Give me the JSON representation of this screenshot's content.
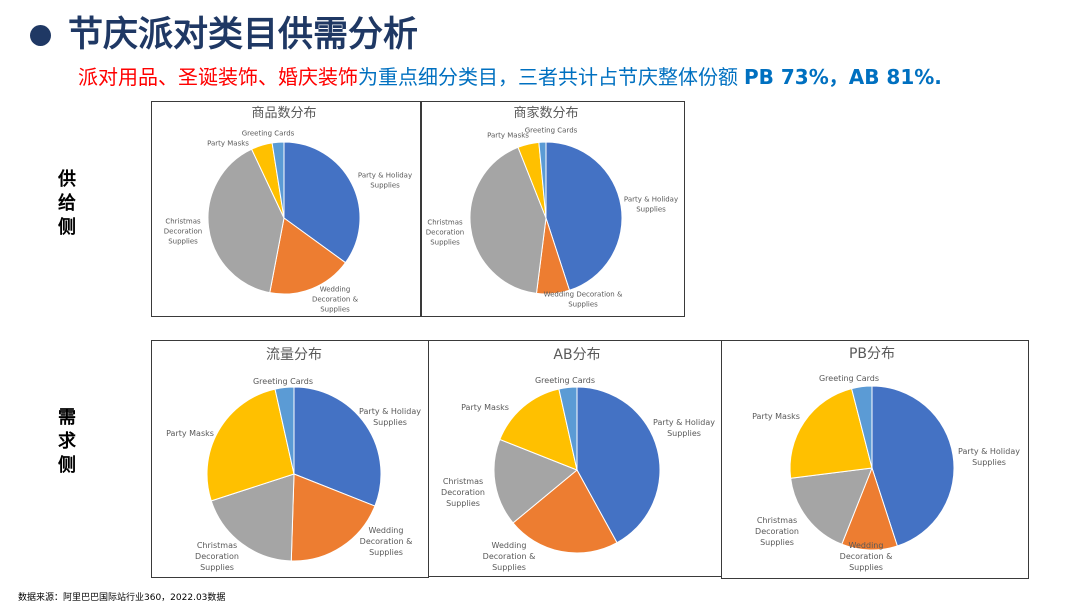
{
  "header": {
    "title": "节庆派对类目供需分析",
    "subtitle": {
      "highlight": "派对用品、圣诞装饰、婚庆装饰",
      "text": "为重点细分类目，三者共计占节庆整体份额",
      "figures": "PB 73%，AB 81%."
    }
  },
  "side_labels": {
    "supply": "供给侧",
    "demand": "需求侧"
  },
  "footer": {
    "source": "数据来源：阿里巴巴国际站行业360，2022.03数据"
  },
  "colors": {
    "title": "#1F3864",
    "highlight": "#FF0000",
    "accent": "#0070C0"
  },
  "chart_data": [
    {
      "type": "pie",
      "title": "商品数分布",
      "categories": [
        "Party & Holiday Supplies",
        "Wedding Decoration & Supplies",
        "Christmas Decoration Supplies",
        "Party Masks",
        "Greeting Cards"
      ],
      "values": [
        35,
        18,
        40,
        4.5,
        2.5
      ],
      "colors": [
        "#4472C4",
        "#ED7D31",
        "#A5A5A5",
        "#FFC000",
        "#5B9BD5"
      ]
    },
    {
      "type": "pie",
      "title": "商家数分布",
      "categories": [
        "Party & Holiday Supplies",
        "Wedding Decoration & Supplies",
        "Christmas Decoration Supplies",
        "Party Masks",
        "Greeting Cards"
      ],
      "values": [
        45,
        7,
        42,
        4.5,
        1.5
      ],
      "colors": [
        "#4472C4",
        "#ED7D31",
        "#A5A5A5",
        "#FFC000",
        "#5B9BD5"
      ]
    },
    {
      "type": "pie",
      "title": "流量分布",
      "categories": [
        "Party & Holiday Supplies",
        "Wedding Decoration & Supplies",
        "Christmas Decoration Supplies",
        "Party Masks",
        "Greeting Cards"
      ],
      "values": [
        31,
        19.5,
        19.5,
        26.5,
        3.5
      ],
      "colors": [
        "#4472C4",
        "#ED7D31",
        "#A5A5A5",
        "#FFC000",
        "#5B9BD5"
      ]
    },
    {
      "type": "pie",
      "title": "AB分布",
      "categories": [
        "Party & Holiday Supplies",
        "Wedding Decoration & Supplies",
        "Christmas Decoration Supplies",
        "Party Masks",
        "Greeting Cards"
      ],
      "values": [
        42,
        22,
        17,
        15.5,
        3.5
      ],
      "colors": [
        "#4472C4",
        "#ED7D31",
        "#A5A5A5",
        "#FFC000",
        "#5B9BD5"
      ]
    },
    {
      "type": "pie",
      "title": "PB分布",
      "categories": [
        "Party & Holiday Supplies",
        "Wedding Decoration & Supplies",
        "Christmas Decoration Supplies",
        "Party Masks",
        "Greeting Cards"
      ],
      "values": [
        45,
        11,
        17,
        23,
        4
      ],
      "colors": [
        "#4472C4",
        "#ED7D31",
        "#A5A5A5",
        "#FFC000",
        "#5B9BD5"
      ]
    }
  ]
}
